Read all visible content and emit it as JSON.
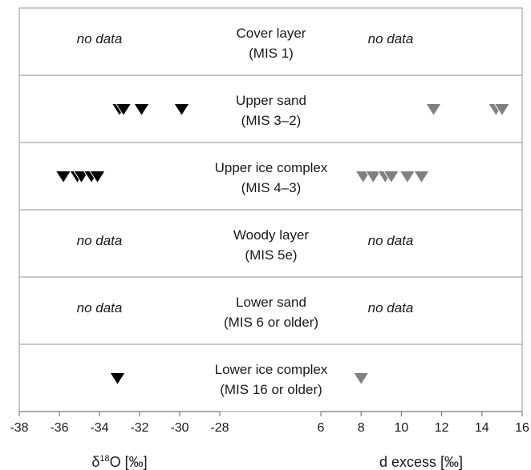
{
  "chart_data": {
    "type": "scatter",
    "layers": [
      {
        "name": "Cover layer",
        "period": "(MIS 1)",
        "d18O": [],
        "dexcess": [],
        "d18O_note": "no data",
        "dexcess_note": "no data"
      },
      {
        "name": "Upper sand",
        "period": "(MIS 3–2)",
        "d18O": [
          -33.0,
          -32.8,
          -31.9,
          -29.9
        ],
        "dexcess": [
          11.6,
          14.7,
          15.0
        ],
        "d18O_note": "",
        "dexcess_note": ""
      },
      {
        "name": "Upper ice complex",
        "period": "(MIS 4–3)",
        "d18O": [
          -35.8,
          -35.1,
          -34.9,
          -34.4,
          -34.1
        ],
        "dexcess": [
          8.1,
          8.6,
          9.2,
          9.5,
          10.3,
          11.0
        ],
        "d18O_note": "",
        "dexcess_note": ""
      },
      {
        "name": "Woody layer",
        "period": "(MIS 5e)",
        "d18O": [],
        "dexcess": [],
        "d18O_note": "no data",
        "dexcess_note": "no data"
      },
      {
        "name": "Lower sand",
        "period": "(MIS 6 or older)",
        "d18O": [],
        "dexcess": [],
        "d18O_note": "no data",
        "dexcess_note": "no data"
      },
      {
        "name": "Lower ice complex",
        "period": "(MIS 16 or older)",
        "d18O": [
          -33.1
        ],
        "dexcess": [
          8.0
        ],
        "d18O_note": "",
        "dexcess_note": ""
      }
    ],
    "left_axis": {
      "label_main": "δ",
      "label_sup": "18",
      "label_rest": "O [‰]",
      "ticks": [
        -38,
        -36,
        -34,
        -32,
        -30,
        -28
      ],
      "tick_labels": [
        "-38",
        "-36",
        "-34",
        "-32",
        "-30",
        "-28"
      ],
      "range": [
        -38,
        -28
      ]
    },
    "right_axis": {
      "label": "d excess [‰]",
      "ticks": [
        6,
        8,
        10,
        12,
        14,
        16
      ],
      "tick_labels": [
        "6",
        "8",
        "10",
        "12",
        "14",
        "16"
      ],
      "range": [
        6,
        16
      ]
    },
    "colors": {
      "d18O_marker": "#000000",
      "dexcess_marker": "#808080",
      "grid": "#a6a6a6",
      "axis": "#808080"
    }
  }
}
